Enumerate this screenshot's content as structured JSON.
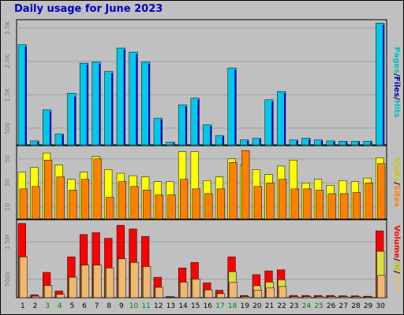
{
  "chart_data": {
    "type": "bar",
    "title": "Daily usage for June 2023",
    "categories": [
      "1",
      "2",
      "3",
      "4",
      "5",
      "6",
      "7",
      "8",
      "9",
      "10",
      "11",
      "12",
      "13",
      "14",
      "15",
      "16",
      "17",
      "18",
      "19",
      "20",
      "21",
      "22",
      "23",
      "24",
      "25",
      "26",
      "27",
      "28",
      "29",
      "30"
    ],
    "weekend_days": [
      "3",
      "4",
      "10",
      "11",
      "17",
      "18",
      "24",
      "25"
    ],
    "colors": {
      "weekday_label": "#000000",
      "weekend_label": "#008000",
      "panel_bg": "#c0c0c0",
      "pages": "#00c0c0",
      "files": "#0000c0",
      "hits": "#00c8e8",
      "visits": "#ffff00",
      "sites": "#ff8000",
      "in": "#ff0000",
      "out": "#f0b870"
    },
    "panels": [
      {
        "name": "hits",
        "side_label": [
          "Pages",
          "/",
          "Files",
          "/",
          "Hits"
        ],
        "side_colors": [
          "#00c0c0",
          "#000000",
          "#0000c0",
          "#000000",
          "#00c0c0"
        ],
        "yticks": [
          "500",
          "1.5K",
          "2.5K",
          "3.5K"
        ],
        "ytick_values": [
          500,
          1500,
          2500,
          3500
        ],
        "ylim": [
          0,
          3750
        ],
        "series": [
          {
            "name": "Hits",
            "values": [
              3000,
              120,
              1050,
              330,
              1550,
              2450,
              2480,
              2200,
              2900,
              2780,
              2480,
              800,
              80,
              1200,
              1400,
              600,
              280,
              2300,
              150,
              200,
              1350,
              1600,
              150,
              200,
              150,
              120,
              110,
              110,
              110,
              3650
            ]
          },
          {
            "name": "Files",
            "values": [
              2950,
              90,
              1000,
              300,
              1450,
              2400,
              2430,
              2150,
              2850,
              2720,
              2420,
              760,
              60,
              1150,
              1350,
              560,
              250,
              2250,
              120,
              170,
              1300,
              1550,
              120,
              170,
              120,
              90,
              80,
              80,
              80,
              3600
            ]
          },
          {
            "name": "Pages",
            "values": [
              1,
              1,
              1,
              1,
              1,
              1,
              1,
              1,
              1,
              1,
              1,
              1,
              1,
              1,
              1,
              1,
              1,
              1,
              1,
              1,
              1,
              1,
              1,
              1,
              1,
              1,
              1,
              1,
              1,
              1
            ]
          }
        ]
      },
      {
        "name": "visits",
        "side_label": [
          "Visits",
          "/",
          "Sites"
        ],
        "side_colors": [
          "#c8c800",
          "#000000",
          "#ff8000"
        ],
        "yticks": [
          "10",
          "30",
          "50"
        ],
        "ytick_values": [
          10,
          30,
          50
        ],
        "ylim": [
          0,
          61
        ],
        "series": [
          {
            "name": "Visits",
            "values": [
              39,
              43,
              55,
              45,
              33,
              39,
              52,
              41,
              38,
              36,
              35,
              31,
              31,
              56,
              56,
              32,
              35,
              50,
              45,
              41,
              37,
              44,
              49,
              30,
              33,
              28,
              32,
              31,
              34,
              51
            ]
          },
          {
            "name": "Sites",
            "values": [
              25,
              27,
              49,
              35,
              24,
              33,
              50,
              18,
              31,
              27,
              24,
              20,
              20,
              33,
              25,
              21,
              25,
              47,
              57,
              27,
              30,
              33,
              25,
              25,
              24,
              21,
              21,
              22,
              30,
              46
            ]
          }
        ]
      },
      {
        "name": "volume",
        "side_label": [
          "Volume",
          "/",
          "IN",
          "/",
          "OUT"
        ],
        "side_colors": [
          "#ff0000",
          "#000000",
          "#c0c000",
          "#000000",
          "#f0b870"
        ],
        "yticks": [
          "500k",
          "1.5M"
        ],
        "ytick_values": [
          500,
          1500
        ],
        "ylim": [
          0,
          2100
        ],
        "series": [
          {
            "name": "In",
            "values": [
              2000,
              80,
              680,
              180,
              1100,
              1700,
              1750,
              1600,
              1950,
              1850,
              1650,
              550,
              30,
              800,
              950,
              400,
              200,
              1100,
              60,
              620,
              720,
              750,
              60,
              60,
              60,
              60,
              50,
              50,
              40,
              1800
            ]
          },
          {
            "name": "Out",
            "values": [
              1100,
              40,
              330,
              90,
              550,
              880,
              880,
              800,
              1050,
              950,
              840,
              280,
              15,
              420,
              500,
              210,
              110,
              700,
              30,
              320,
              420,
              480,
              30,
              30,
              30,
              30,
              25,
              25,
              20,
              1250
            ]
          },
          {
            "name": "Volume",
            "values": [
              1100,
              40,
              330,
              90,
              550,
              880,
              880,
              800,
              1050,
              950,
              840,
              280,
              15,
              420,
              500,
              210,
              110,
              420,
              30,
              200,
              260,
              300,
              30,
              30,
              30,
              30,
              25,
              25,
              20,
              600
            ]
          }
        ]
      }
    ]
  }
}
